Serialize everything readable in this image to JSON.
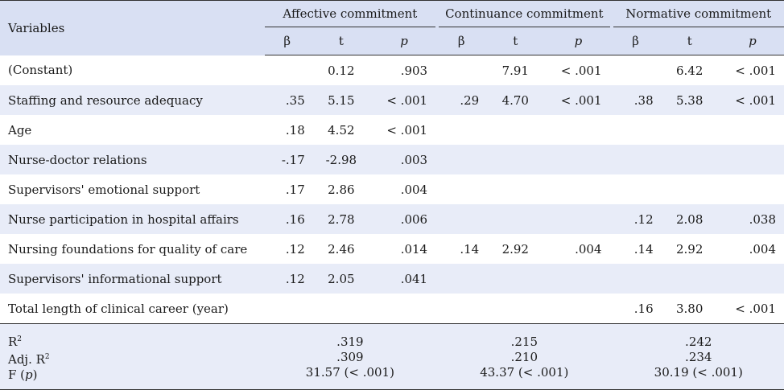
{
  "header": {
    "variables": "Variables",
    "groups": [
      "Affective commitment",
      "Continuance commitment",
      "Normative commitment"
    ],
    "sub": {
      "beta": "β",
      "t": "t",
      "p": "p"
    }
  },
  "rows": [
    {
      "name": "(Constant)",
      "a": [
        "",
        "0.12",
        ".903"
      ],
      "c": [
        "",
        "7.91",
        "< .001"
      ],
      "n": [
        "",
        "6.42",
        "< .001"
      ]
    },
    {
      "name": "Staffing and resource adequacy",
      "a": [
        ".35",
        "5.15",
        "< .001"
      ],
      "c": [
        ".29",
        "4.70",
        "< .001"
      ],
      "n": [
        ".38",
        "5.38",
        "< .001"
      ]
    },
    {
      "name": "Age",
      "a": [
        ".18",
        "4.52",
        "< .001"
      ],
      "c": [
        "",
        "",
        ""
      ],
      "n": [
        "",
        "",
        ""
      ]
    },
    {
      "name": "Nurse-doctor relations",
      "a": [
        "-.17",
        "-2.98",
        ".003"
      ],
      "c": [
        "",
        "",
        ""
      ],
      "n": [
        "",
        "",
        ""
      ]
    },
    {
      "name": "Supervisors' emotional support",
      "a": [
        ".17",
        "2.86",
        ".004"
      ],
      "c": [
        "",
        "",
        ""
      ],
      "n": [
        "",
        "",
        ""
      ]
    },
    {
      "name": "Nurse participation in hospital affairs",
      "a": [
        ".16",
        "2.78",
        ".006"
      ],
      "c": [
        "",
        "",
        ""
      ],
      "n": [
        ".12",
        "2.08",
        ".038"
      ]
    },
    {
      "name": "Nursing foundations for quality of care",
      "a": [
        ".12",
        "2.46",
        ".014"
      ],
      "c": [
        ".14",
        "2.92",
        ".004"
      ],
      "n": [
        ".14",
        "2.92",
        ".004"
      ]
    },
    {
      "name": "Supervisors' informational support",
      "a": [
        ".12",
        "2.05",
        ".041"
      ],
      "c": [
        "",
        "",
        ""
      ],
      "n": [
        "",
        "",
        ""
      ]
    },
    {
      "name": "Total length of clinical career (year)",
      "a": [
        "",
        "",
        ""
      ],
      "c": [
        "",
        "",
        ""
      ],
      "n": [
        ".16",
        "3.80",
        "< .001"
      ]
    }
  ],
  "stats": {
    "labels": {
      "r2": "R",
      "adjr2": "Adj. R",
      "sup2": "2",
      "f": "F (",
      "fp": "p",
      "fclose": ")"
    },
    "affective": {
      "r2": ".319",
      "adjr2": ".309",
      "f": "31.57 (< .001)"
    },
    "continuance": {
      "r2": ".215",
      "adjr2": ".210",
      "f": "43.37 (< .001)"
    },
    "normative": {
      "r2": ".242",
      "adjr2": ".234",
      "f": "30.19 (< .001)"
    }
  }
}
